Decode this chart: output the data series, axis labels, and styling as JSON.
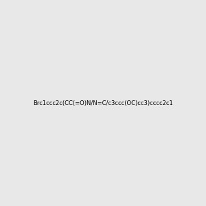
{
  "smiles": "Brc1ccc2c(CC(=O)N/N=C/c3ccc(OC)cc3)cccc2c1",
  "bg_color": "#e8e8e8",
  "img_size": [
    300,
    300
  ]
}
